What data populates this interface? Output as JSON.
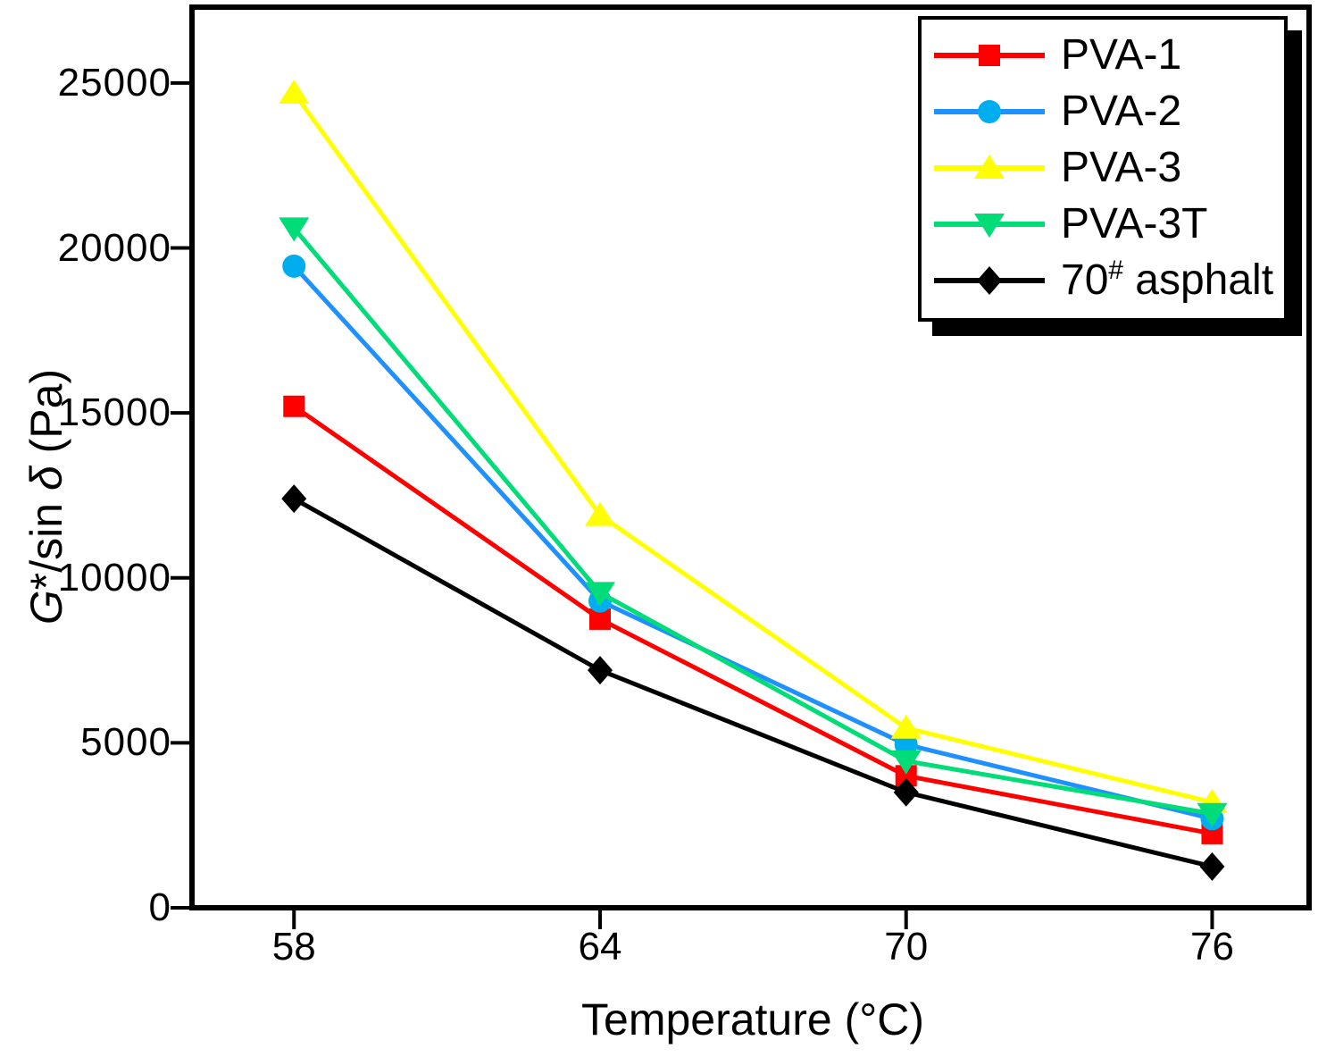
{
  "figure": {
    "background": "#FFFFFF",
    "frame_color": "#000000",
    "text_color": "#000000"
  },
  "chart_data": {
    "type": "line",
    "title": "",
    "xlabel": "Temperature (°C)",
    "ylabel": "G*/sin δ (Pa)",
    "ylabel_parts": [
      {
        "text": "G",
        "italic": true
      },
      {
        "text": "*/sin ",
        "italic": false
      },
      {
        "text": "δ",
        "italic": true
      },
      {
        "text": " (Pa)",
        "italic": false
      }
    ],
    "x": [
      58,
      64,
      70,
      76
    ],
    "x_ticks": [
      58,
      64,
      70,
      76
    ],
    "y_ticks": [
      0,
      5000,
      10000,
      15000,
      20000,
      25000
    ],
    "xlim": [
      56,
      77.9
    ],
    "ylim": [
      0,
      27300
    ],
    "grid": false,
    "legend_position": "upper-right",
    "series": [
      {
        "name": "PVA-1",
        "color": "#FF0000",
        "marker": "square",
        "marker_color": "#FF0000",
        "values": [
          15200,
          8750,
          4000,
          2250
        ]
      },
      {
        "name": "PVA-2",
        "color": "#1E90FF",
        "marker": "circle",
        "marker_color": "#00AEEF",
        "values": [
          19450,
          9300,
          4950,
          2700
        ]
      },
      {
        "name": "PVA-3",
        "color": "#FFFF00",
        "marker": "triangle-up",
        "marker_color": "#FFFF00",
        "values": [
          24700,
          11900,
          5450,
          3200
        ]
      },
      {
        "name": "PVA-3T",
        "color": "#00DC78",
        "marker": "triangle-down",
        "marker_color": "#00DC78",
        "values": [
          20600,
          9550,
          4450,
          2850
        ]
      },
      {
        "name": "70# asphalt",
        "name_parts": [
          {
            "text": "70"
          },
          {
            "text": "#",
            "sup": true
          },
          {
            "text": " asphalt"
          }
        ],
        "color": "#000000",
        "marker": "diamond",
        "marker_color": "#000000",
        "values": [
          12400,
          7200,
          3500,
          1250
        ]
      }
    ]
  }
}
